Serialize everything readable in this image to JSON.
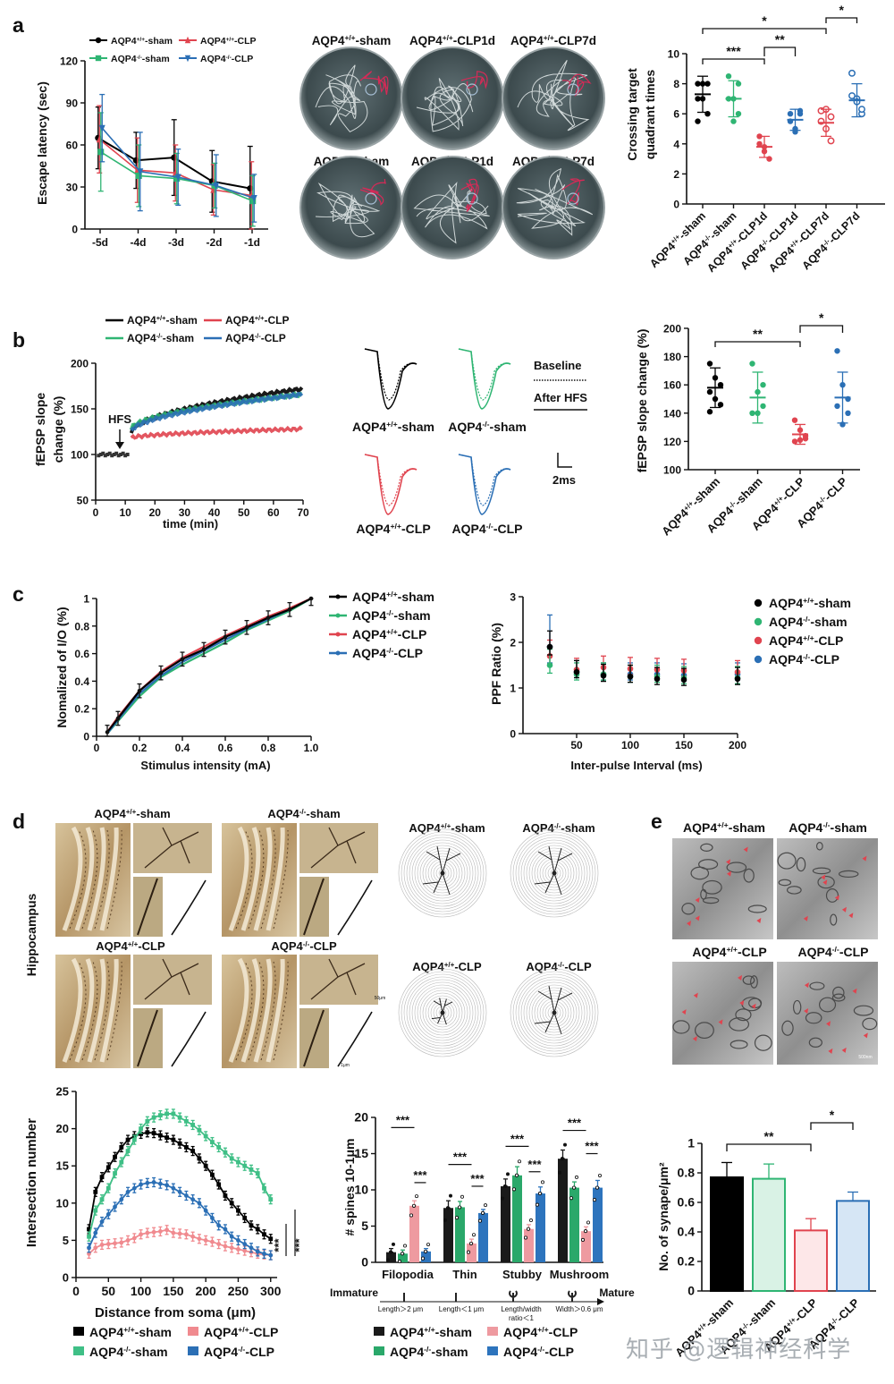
{
  "panels": {
    "a": "a",
    "b": "b",
    "c": "c",
    "d": "d",
    "e": "e"
  },
  "colors": {
    "wt_sham": "#000000",
    "ko_sham": "#2fb573",
    "wt_clp": "#e0444f",
    "ko_clp": "#2b6fb5",
    "wt_clp_light": "#f08a8f",
    "ko_sham_light": "#8fd6b3",
    "ko_clp_light": "#86b2de"
  },
  "legends": {
    "wt_sham": "AQP4+/+-sham",
    "ko_sham": "AQP4-/--sham",
    "wt_clp": "AQP4+/+-CLP",
    "ko_clp": "AQP4-/--CLP"
  },
  "maze_labels": [
    "AQP4+/+-sham",
    "AQP4+/+-CLP1d",
    "AQP4+/+-CLP7d",
    "AQP4-/--sham",
    "AQP4-/--CLP1d",
    "AQP4-/--CLP7d"
  ],
  "trace_labels": [
    "AQP4+/+-sham",
    "AQP4-/--sham",
    "AQP4+/+-CLP",
    "AQP4-/--CLP"
  ],
  "trace_legend": {
    "baseline": "Baseline",
    "after": "After HFS",
    "scale": "2ms"
  },
  "d_labels": {
    "hippocampus": "Hippocampus",
    "groups": [
      "AQP4+/+-sham",
      "AQP4-/--sham",
      "AQP4+/+-CLP",
      "AQP4-/--CLP"
    ],
    "scale1": "50μm",
    "scale2": "1μm"
  },
  "e_labels": {
    "groups": [
      "AQP4+/+-sham",
      "AQP4-/--sham",
      "AQP4+/+-CLP",
      "AQP4-/--CLP"
    ],
    "scale": "500nm"
  },
  "spine_types": {
    "immature": "Immature",
    "mature": "Mature",
    "criteria": [
      "Length＞2 μm",
      "Length＜1 μm",
      "Length/width ratio＜1",
      "Width＞0.6 μm"
    ]
  },
  "watermark": "知乎 @逻辑神经科学",
  "chart_data": [
    {
      "id": "a-escape",
      "type": "line",
      "xlabel": "",
      "ylabel": "Escape latency (sec)",
      "categories": [
        "-5d",
        "-4d",
        "-3d",
        "-2d",
        "-1d"
      ],
      "ylim": [
        0,
        120
      ],
      "yticks": [
        0,
        30,
        60,
        90,
        120
      ],
      "series": [
        {
          "name": "AQP4+/+-sham",
          "values": [
            65,
            49,
            51,
            34,
            29
          ],
          "err": [
            22,
            20,
            27,
            22,
            30
          ]
        },
        {
          "name": "AQP4+/+-CLP",
          "values": [
            64,
            42,
            40,
            28,
            24
          ],
          "err": [
            24,
            23,
            20,
            18,
            24
          ]
        },
        {
          "name": "AQP4-/--sham",
          "values": [
            55,
            38,
            36,
            31,
            20
          ],
          "err": [
            28,
            22,
            18,
            16,
            18
          ]
        },
        {
          "name": "AQP4-/--CLP",
          "values": [
            72,
            41,
            37,
            31,
            22
          ],
          "err": [
            24,
            28,
            20,
            22,
            17
          ]
        }
      ]
    },
    {
      "id": "a-crossing",
      "type": "scatter",
      "ylabel": "Crossing target quadrant times",
      "categories": [
        "AQP4+/+-sham",
        "AQP4-/--sham",
        "AQP4+/+-CLP1d",
        "AQP4-/--CLP1d",
        "AQP4+/+-CLP7d",
        "AQP4-/--CLP7d"
      ],
      "ylim": [
        0,
        10
      ],
      "yticks": [
        0,
        2,
        4,
        6,
        8,
        10
      ],
      "groups": [
        {
          "mean": 7.3,
          "sd": 1.2,
          "points": [
            8,
            7,
            6,
            7,
            8,
            8,
            5.5
          ]
        },
        {
          "mean": 7.0,
          "sd": 1.2,
          "points": [
            8.5,
            7,
            6,
            7,
            5.5,
            8
          ]
        },
        {
          "mean": 3.8,
          "sd": 0.7,
          "points": [
            4.5,
            3.5,
            3,
            4,
            3.8
          ]
        },
        {
          "mean": 5.6,
          "sd": 0.7,
          "points": [
            6,
            5,
            6.2,
            5.5,
            4.8,
            6
          ]
        },
        {
          "mean": 5.4,
          "sd": 0.9,
          "points": [
            6.2,
            5,
            4.2,
            5.5,
            6.3,
            5.8
          ]
        },
        {
          "mean": 6.9,
          "sd": 1.1,
          "points": [
            8.7,
            7,
            6,
            7.2,
            6.8,
            6.3
          ]
        }
      ],
      "significance": [
        {
          "from": 0,
          "to": 4,
          "label": "*"
        },
        {
          "from": 0,
          "to": 2,
          "label": "***"
        },
        {
          "from": 2,
          "to": 3,
          "label": "**"
        },
        {
          "from": 4,
          "to": 5,
          "label": "*"
        }
      ]
    },
    {
      "id": "b-fepsp",
      "type": "line",
      "xlabel": "time (min)",
      "ylabel": "fEPSP slope change (%)",
      "annotation": "HFS",
      "xlim": [
        0,
        70
      ],
      "xticks": [
        0,
        10,
        20,
        30,
        40,
        50,
        60,
        70
      ],
      "ylim": [
        50,
        200
      ],
      "yticks": [
        50,
        100,
        150,
        200
      ],
      "series": [
        {
          "name": "AQP4+/+-sham",
          "start": 125,
          "end": 172
        },
        {
          "name": "AQP4-/--sham",
          "start": 128,
          "end": 166
        },
        {
          "name": "AQP4+/+-CLP",
          "start": 118,
          "end": 128
        },
        {
          "name": "AQP4-/--CLP",
          "start": 125,
          "end": 166
        }
      ]
    },
    {
      "id": "b-slope",
      "type": "scatter",
      "ylabel": "fEPSP slope change (%)",
      "categories": [
        "AQP4+/+-sham",
        "AQP4-/--sham",
        "AQP4+/+-CLP",
        "AQP4-/--CLP"
      ],
      "ylim": [
        100,
        200
      ],
      "yticks": [
        100,
        120,
        140,
        160,
        180,
        200
      ],
      "groups": [
        {
          "mean": 158,
          "sd": 14,
          "points": [
            175,
            165,
            160,
            155,
            150,
            146,
            141
          ]
        },
        {
          "mean": 151,
          "sd": 18,
          "points": [
            175,
            155,
            145,
            140,
            140,
            160
          ]
        },
        {
          "mean": 125,
          "sd": 7,
          "points": [
            135,
            128,
            122,
            120,
            121,
            124
          ]
        },
        {
          "mean": 151,
          "sd": 18,
          "points": [
            184,
            160,
            140,
            145,
            132,
            150
          ]
        }
      ],
      "significance": [
        {
          "from": 0,
          "to": 2,
          "label": "**"
        },
        {
          "from": 2,
          "to": 3,
          "label": "*"
        }
      ]
    },
    {
      "id": "c-io",
      "type": "line",
      "xlabel": "Stimulus intensity (mA)",
      "ylabel": "Nomalized of I/O (%)",
      "x": [
        0.05,
        0.1,
        0.2,
        0.3,
        0.4,
        0.5,
        0.6,
        0.7,
        0.8,
        0.9,
        1.0
      ],
      "xlim": [
        0,
        1.0
      ],
      "xticks": [
        0,
        0.2,
        0.4,
        0.6,
        0.8,
        1.0
      ],
      "ylim": [
        0,
        1.0
      ],
      "yticks": [
        0,
        0.2,
        0.4,
        0.6,
        0.8,
        1.0
      ],
      "series": [
        {
          "name": "AQP4+/+-sham",
          "values": [
            0.03,
            0.13,
            0.33,
            0.46,
            0.56,
            0.63,
            0.72,
            0.79,
            0.86,
            0.92,
            1.0
          ]
        },
        {
          "name": "AQP4-/--sham",
          "values": [
            0.02,
            0.11,
            0.29,
            0.43,
            0.52,
            0.6,
            0.68,
            0.77,
            0.84,
            0.91,
            1.0
          ]
        },
        {
          "name": "AQP4+/+-CLP",
          "values": [
            0.03,
            0.14,
            0.33,
            0.47,
            0.57,
            0.65,
            0.73,
            0.8,
            0.87,
            0.93,
            1.0
          ]
        },
        {
          "name": "AQP4-/--CLP",
          "values": [
            0.02,
            0.12,
            0.31,
            0.44,
            0.54,
            0.62,
            0.7,
            0.78,
            0.85,
            0.92,
            1.0
          ]
        }
      ]
    },
    {
      "id": "c-ppf",
      "type": "scatter",
      "xlabel": "Inter-pulse Interval (ms)",
      "ylabel": "PPF  Ratio (%)",
      "x": [
        25,
        50,
        75,
        100,
        125,
        150,
        200
      ],
      "xlim": [
        0,
        200
      ],
      "xticks": [
        50,
        100,
        150,
        200
      ],
      "ylim": [
        0,
        3
      ],
      "yticks": [
        0,
        1,
        2,
        3
      ],
      "series": [
        {
          "name": "AQP4+/+-sham",
          "values": [
            1.9,
            1.35,
            1.27,
            1.25,
            1.2,
            1.18,
            1.2
          ]
        },
        {
          "name": "AQP4-/--sham",
          "values": [
            1.5,
            1.3,
            1.3,
            1.25,
            1.25,
            1.22,
            1.22
          ]
        },
        {
          "name": "AQP4+/+-CLP",
          "values": [
            1.7,
            1.4,
            1.45,
            1.42,
            1.4,
            1.38,
            1.35
          ]
        },
        {
          "name": "AQP4-/--CLP",
          "values": [
            1.9,
            1.35,
            1.3,
            1.3,
            1.3,
            1.28,
            1.3
          ]
        }
      ]
    },
    {
      "id": "d-sholl",
      "type": "line",
      "xlabel": "Distance from soma (μm)",
      "ylabel": "Intersection number",
      "x": [
        20,
        30,
        40,
        50,
        60,
        70,
        80,
        90,
        100,
        110,
        120,
        130,
        140,
        150,
        160,
        170,
        180,
        190,
        200,
        210,
        220,
        230,
        240,
        250,
        260,
        270,
        280,
        290,
        300
      ],
      "xlim": [
        0,
        310
      ],
      "xticks": [
        0,
        50,
        100,
        150,
        200,
        250,
        300
      ],
      "ylim": [
        0,
        25
      ],
      "yticks": [
        0,
        5,
        10,
        15,
        20,
        25
      ],
      "annotation": "***",
      "series": [
        {
          "name": "AQP4+/+-sham",
          "values": [
            6.5,
            11.5,
            13.5,
            14.8,
            16.2,
            17.5,
            18.5,
            19,
            19.3,
            19.5,
            19.4,
            19.1,
            18.8,
            18.5,
            18,
            17.5,
            17,
            16,
            15,
            13.8,
            12.5,
            11,
            10,
            9,
            8,
            7,
            6.5,
            5.8,
            5.2
          ]
        },
        {
          "name": "AQP4-/--sham",
          "values": [
            5.5,
            9,
            10.5,
            12,
            14,
            15.5,
            17,
            18.5,
            20,
            21,
            21.5,
            21.8,
            22,
            22,
            21.5,
            21,
            20.5,
            19.8,
            19,
            18.2,
            17.5,
            16.8,
            16,
            15.5,
            15,
            14.5,
            14,
            12,
            10.5
          ]
        },
        {
          "name": "AQP4+/+-CLP",
          "values": [
            3.2,
            4,
            4.4,
            4.5,
            4.6,
            4.7,
            5,
            5.3,
            5.8,
            6,
            6.1,
            6.2,
            6.4,
            6,
            5.9,
            5.8,
            5.5,
            5.2,
            5,
            4.8,
            4.5,
            4.2,
            4,
            3.8,
            3.6,
            3.4,
            3.2,
            3.1,
            3
          ]
        },
        {
          "name": "AQP4-/--CLP",
          "values": [
            4,
            6,
            7.5,
            8.5,
            9.5,
            10.5,
            11.5,
            12,
            12.5,
            12.7,
            12.8,
            12.6,
            12.4,
            12,
            11.5,
            11,
            10.5,
            10,
            9,
            8,
            7,
            6.5,
            5.5,
            5,
            4.5,
            4,
            3.5,
            3.2,
            3
          ]
        }
      ]
    },
    {
      "id": "d-spines",
      "type": "bar",
      "ylabel": "# spines 10-1μm",
      "categories": [
        "Filopodia",
        "Thin",
        "Stubby",
        "Mushroom"
      ],
      "ylim": [
        0,
        20
      ],
      "yticks": [
        0,
        5,
        10,
        15,
        20
      ],
      "series": [
        {
          "name": "AQP4+/+-sham",
          "values": [
            1.4,
            7.5,
            10.5,
            14.3
          ],
          "err": [
            0.5,
            1,
            1,
            1.2
          ]
        },
        {
          "name": "AQP4-/--sham",
          "values": [
            1.2,
            7.6,
            12,
            10.3
          ],
          "err": [
            0.5,
            0.8,
            1.2,
            0.8
          ]
        },
        {
          "name": "AQP4+/+-CLP",
          "values": [
            7.8,
            2.6,
            4.6,
            4.3
          ],
          "err": [
            0.7,
            0.6,
            0.6,
            0.6
          ]
        },
        {
          "name": "AQP4-/--CLP",
          "values": [
            1.5,
            6.8,
            9.5,
            10.3
          ],
          "err": [
            0.4,
            0.5,
            0.9,
            1
          ]
        }
      ],
      "significance": [
        {
          "cat": 0,
          "label": "***",
          "y": 18.6,
          "pair": [
            0,
            2
          ]
        },
        {
          "cat": 0,
          "label": "***",
          "y": 11,
          "pair": [
            2,
            3
          ]
        },
        {
          "cat": 1,
          "label": "***",
          "y": 13.5,
          "pair": [
            0,
            2
          ]
        },
        {
          "cat": 1,
          "label": "***",
          "y": 10.5,
          "pair": [
            2,
            3
          ]
        },
        {
          "cat": 2,
          "label": "***",
          "y": 16,
          "pair": [
            0,
            2
          ]
        },
        {
          "cat": 2,
          "label": "***",
          "y": 12.5,
          "pair": [
            2,
            3
          ]
        },
        {
          "cat": 3,
          "label": "***",
          "y": 18.2,
          "pair": [
            0,
            2
          ]
        },
        {
          "cat": 3,
          "label": "***",
          "y": 15,
          "pair": [
            2,
            3
          ]
        }
      ]
    },
    {
      "id": "e-synapse",
      "type": "bar",
      "ylabel": "No. of synape/μm²",
      "categories": [
        "AQP4+/+-sham",
        "AQP4-/--sham",
        "AQP4+/+-CLP",
        "AQP4-/--CLP"
      ],
      "ylim": [
        0,
        1.0
      ],
      "yticks": [
        0,
        0.2,
        0.4,
        0.6,
        0.8,
        1.0
      ],
      "values": [
        0.77,
        0.76,
        0.41,
        0.61
      ],
      "err": [
        0.1,
        0.1,
        0.08,
        0.06
      ],
      "significance": [
        {
          "from": 0,
          "to": 2,
          "label": "**"
        },
        {
          "from": 2,
          "to": 3,
          "label": "*"
        }
      ]
    }
  ]
}
